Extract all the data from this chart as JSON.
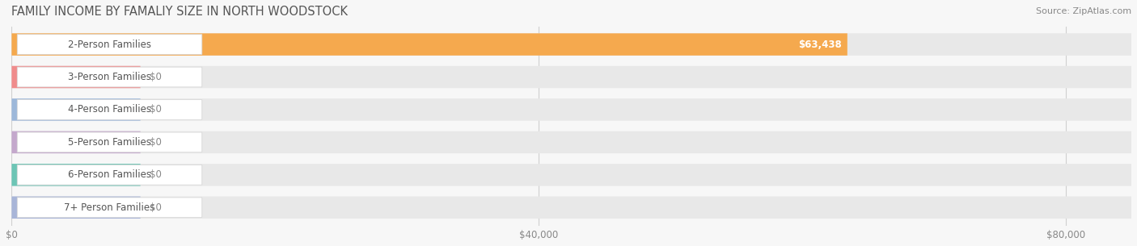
{
  "title": "FAMILY INCOME BY FAMALIY SIZE IN NORTH WOODSTOCK",
  "source": "Source: ZipAtlas.com",
  "categories": [
    "2-Person Families",
    "3-Person Families",
    "4-Person Families",
    "5-Person Families",
    "6-Person Families",
    "7+ Person Families"
  ],
  "values": [
    63438,
    0,
    0,
    0,
    0,
    0
  ],
  "bar_colors": [
    "#F5A94E",
    "#F08C8C",
    "#9DB8DA",
    "#C4A8CC",
    "#6DC5B5",
    "#A8B5D8"
  ],
  "value_labels": [
    "$63,438",
    "$0",
    "$0",
    "$0",
    "$0",
    "$0"
  ],
  "xlim_max": 85000,
  "xticks": [
    0,
    40000,
    80000
  ],
  "xticklabels": [
    "$0",
    "$40,000",
    "$80,000"
  ],
  "bg_color": "#f7f7f7",
  "row_bg_color": "#e8e8e8",
  "row_bg_color2": "#f0f0f0",
  "label_box_color": "#ffffff",
  "title_color": "#555555",
  "source_color": "#888888",
  "value_color_on_bar": "#ffffff",
  "value_color_off_bar": "#888888",
  "grid_color": "#d0d0d0",
  "title_fontsize": 10.5,
  "source_fontsize": 8,
  "bar_label_fontsize": 8.5,
  "value_fontsize": 8.5,
  "tick_fontsize": 8.5
}
